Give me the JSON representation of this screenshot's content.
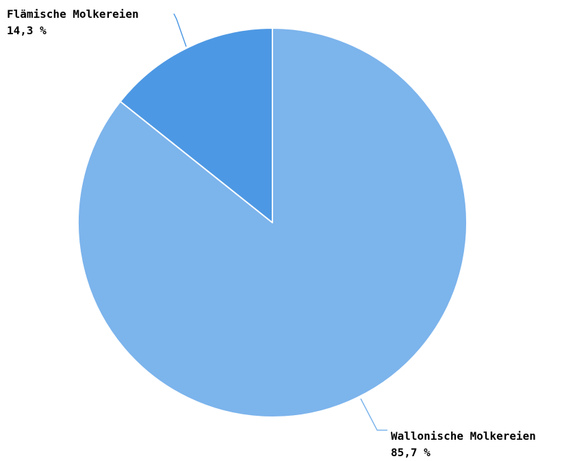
{
  "chart_data": {
    "type": "pie",
    "start_angle_deg": 0,
    "direction": "clockwise",
    "slice_border_color": "#ffffff",
    "slices": [
      {
        "name": "Wallonische Molkereien",
        "value": 85.7,
        "value_label": "85,7 %",
        "color": "#7cb4ec"
      },
      {
        "name": "Flämische Molkereien",
        "value": 14.3,
        "value_label": "14,3 %",
        "color": "#4d98e4"
      }
    ]
  }
}
